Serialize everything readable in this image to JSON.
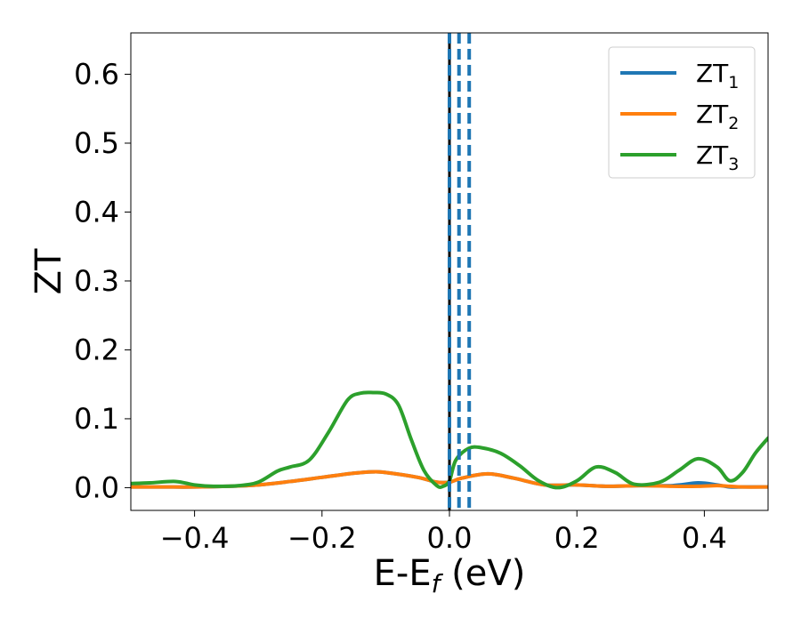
{
  "chart_data": {
    "type": "line",
    "title": "",
    "xlabel": "E-E",
    "xlabel_sub": "f",
    "xlabel_unit": " (eV)",
    "ylabel": "ZT",
    "xlim": [
      -0.5,
      0.5
    ],
    "ylim": [
      -0.033,
      0.66
    ],
    "xticks": [
      -0.4,
      -0.2,
      0.0,
      0.2,
      0.4
    ],
    "xtick_labels": [
      "−0.4",
      "−0.2",
      "0.0",
      "0.2",
      "0.4"
    ],
    "yticks": [
      0.0,
      0.1,
      0.2,
      0.3,
      0.4,
      0.5,
      0.6
    ],
    "ytick_labels": [
      "0.0",
      "0.1",
      "0.2",
      "0.3",
      "0.4",
      "0.5",
      "0.6"
    ],
    "grid": false,
    "legend_position": "top-right",
    "vlines": [
      {
        "x": 0.0,
        "color": "#000000",
        "style": "solid"
      },
      {
        "x": 0.0,
        "color": "#1f77b4",
        "style": "dashed"
      },
      {
        "x": 0.015,
        "color": "#1f77b4",
        "style": "dashed"
      },
      {
        "x": 0.031,
        "color": "#1f77b4",
        "style": "dashed"
      }
    ],
    "series": [
      {
        "name": "ZT",
        "sub": "1",
        "color": "#1f77b4",
        "x": [
          -0.5,
          -0.45,
          -0.4,
          -0.35,
          -0.3,
          -0.25,
          -0.2,
          -0.15,
          -0.12,
          -0.1,
          -0.05,
          -0.02,
          0.0,
          0.02,
          0.06,
          0.1,
          0.15,
          0.2,
          0.25,
          0.3,
          0.35,
          0.39,
          0.42,
          0.44,
          0.46,
          0.5
        ],
        "y": [
          0.001,
          0.001,
          0.001,
          0.002,
          0.004,
          0.009,
          0.015,
          0.021,
          0.023,
          0.022,
          0.015,
          0.008,
          0.008,
          0.014,
          0.02,
          0.014,
          0.004,
          0.004,
          0.002,
          0.003,
          0.003,
          0.007,
          0.004,
          0.001,
          0.001,
          0.001
        ]
      },
      {
        "name": "ZT",
        "sub": "2",
        "color": "#ff7f0e",
        "x": [
          -0.5,
          -0.45,
          -0.4,
          -0.35,
          -0.3,
          -0.25,
          -0.2,
          -0.15,
          -0.12,
          -0.1,
          -0.05,
          -0.02,
          0.0,
          0.02,
          0.06,
          0.1,
          0.15,
          0.2,
          0.25,
          0.3,
          0.35,
          0.39,
          0.42,
          0.44,
          0.46,
          0.5
        ],
        "y": [
          0.001,
          0.001,
          0.001,
          0.002,
          0.004,
          0.009,
          0.015,
          0.021,
          0.023,
          0.022,
          0.015,
          0.008,
          0.008,
          0.014,
          0.02,
          0.014,
          0.004,
          0.004,
          0.002,
          0.003,
          0.002,
          0.002,
          0.003,
          0.002,
          0.001,
          0.001
        ]
      },
      {
        "name": "ZT",
        "sub": "3",
        "color": "#2ca02c",
        "x": [
          -0.5,
          -0.47,
          -0.43,
          -0.4,
          -0.37,
          -0.33,
          -0.3,
          -0.27,
          -0.25,
          -0.22,
          -0.19,
          -0.16,
          -0.14,
          -0.12,
          -0.1,
          -0.08,
          -0.06,
          -0.04,
          -0.02,
          -0.01,
          0.0,
          0.01,
          0.03,
          0.05,
          0.08,
          0.11,
          0.14,
          0.17,
          0.2,
          0.23,
          0.26,
          0.29,
          0.33,
          0.36,
          0.39,
          0.42,
          0.44,
          0.46,
          0.48,
          0.5
        ],
        "y": [
          0.006,
          0.007,
          0.009,
          0.004,
          0.002,
          0.003,
          0.008,
          0.024,
          0.03,
          0.04,
          0.08,
          0.127,
          0.137,
          0.138,
          0.136,
          0.12,
          0.07,
          0.025,
          0.003,
          0.002,
          0.01,
          0.04,
          0.057,
          0.058,
          0.05,
          0.032,
          0.01,
          0.0,
          0.01,
          0.03,
          0.022,
          0.005,
          0.008,
          0.025,
          0.042,
          0.03,
          0.01,
          0.022,
          0.05,
          0.072
        ]
      }
    ]
  }
}
